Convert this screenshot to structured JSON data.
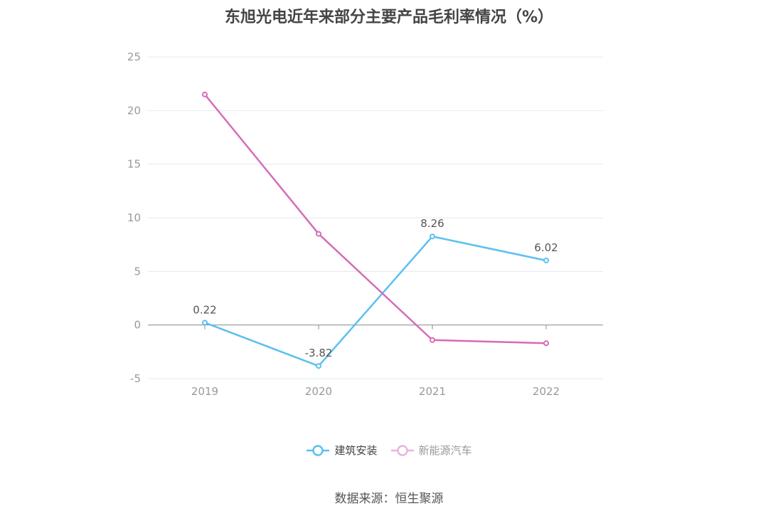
{
  "chart_data": {
    "type": "line",
    "title": "东旭光电近年来部分主要产品毛利率情况（%）",
    "categories": [
      "2019",
      "2020",
      "2021",
      "2022"
    ],
    "ylim": [
      -5,
      25
    ],
    "yticks": [
      -5,
      0,
      5,
      10,
      15,
      20,
      25
    ],
    "grid": true,
    "legend_position": "bottom",
    "series": [
      {
        "name": "建筑安装",
        "values": [
          0.22,
          -3.82,
          8.26,
          6.02
        ],
        "color": "#5bc0f0",
        "labels": [
          "0.22",
          "-3.82",
          "8.26",
          "6.02"
        ]
      },
      {
        "name": "新能源汽车",
        "values": [
          21.5,
          8.5,
          -1.4,
          -1.7
        ],
        "color": "#d66bb8"
      }
    ],
    "source": "数据来源：恒生聚源"
  }
}
